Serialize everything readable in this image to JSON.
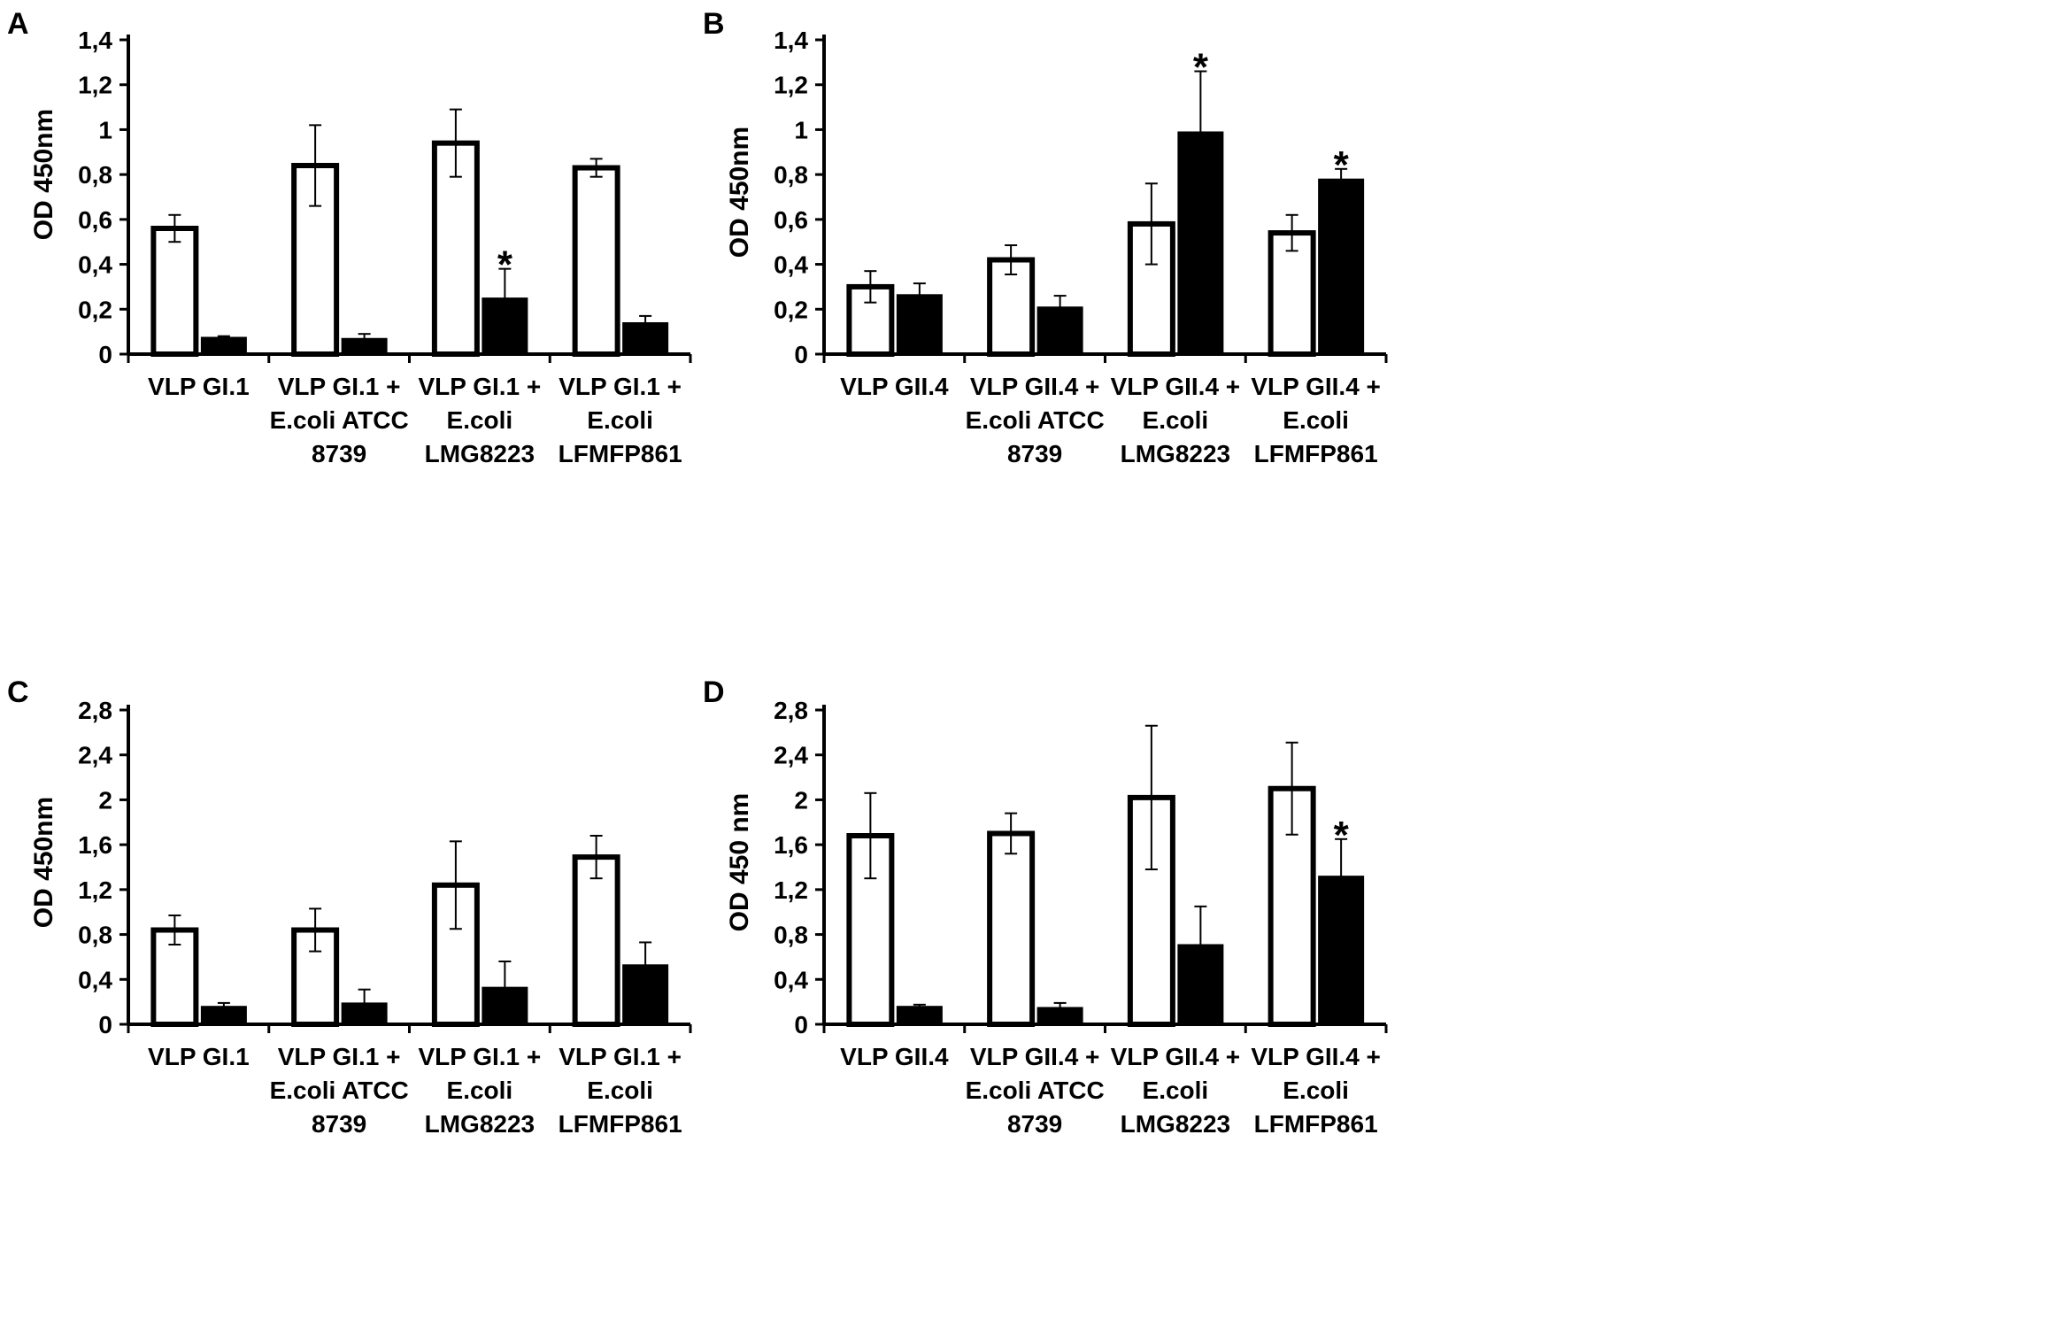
{
  "chart_data": [
    {
      "panel": "A",
      "type": "bar",
      "ylabel": "OD 450nm",
      "ylim": [
        0,
        1.4
      ],
      "yticks": [
        "0",
        "0,2",
        "0,4",
        "0,6",
        "0,8",
        "1",
        "1,2",
        "1,4"
      ],
      "categories": [
        [
          "VLP GI.1"
        ],
        [
          "VLP GI.1 +",
          "E.coli ATCC",
          "8739"
        ],
        [
          "VLP GI.1 +",
          "E.coli",
          "LMG8223"
        ],
        [
          "VLP GI.1 +",
          "E.coli",
          "LFMFP861"
        ]
      ],
      "series": [
        {
          "name": "white",
          "values": [
            0.56,
            0.84,
            0.94,
            0.83
          ],
          "errors": [
            0.06,
            0.18,
            0.15,
            0.04
          ]
        },
        {
          "name": "black",
          "values": [
            0.075,
            0.07,
            0.25,
            0.14
          ],
          "errors": [
            0.005,
            0.02,
            0.13,
            0.03
          ]
        }
      ],
      "significance": [
        {
          "series": 1,
          "index": 2,
          "label": "*"
        }
      ]
    },
    {
      "panel": "B",
      "type": "bar",
      "ylabel": "OD 450nm",
      "ylim": [
        0,
        1.4
      ],
      "yticks": [
        "0",
        "0,2",
        "0,4",
        "0,6",
        "0,8",
        "1",
        "1,2",
        "1,4"
      ],
      "categories": [
        [
          "VLP GII.4"
        ],
        [
          "VLP GII.4 +",
          "E.coli ATCC",
          "8739"
        ],
        [
          "VLP GII.4 +",
          "E.coli",
          "LMG8223"
        ],
        [
          "VLP GII.4 +",
          "E.coli",
          "LFMFP861"
        ]
      ],
      "series": [
        {
          "name": "white",
          "values": [
            0.3,
            0.42,
            0.58,
            0.54
          ],
          "errors": [
            0.07,
            0.065,
            0.18,
            0.08
          ]
        },
        {
          "name": "black",
          "values": [
            0.265,
            0.21,
            0.99,
            0.78
          ],
          "errors": [
            0.05,
            0.05,
            0.27,
            0.045
          ]
        }
      ],
      "significance": [
        {
          "series": 1,
          "index": 2,
          "label": "*"
        },
        {
          "series": 1,
          "index": 3,
          "label": "*"
        }
      ]
    },
    {
      "panel": "C",
      "type": "bar",
      "ylabel": "OD 450nm",
      "ylim": [
        0,
        2.8
      ],
      "yticks": [
        "0",
        "0,4",
        "0,8",
        "1,2",
        "1,6",
        "2",
        "2,4",
        "2,8"
      ],
      "categories": [
        [
          "VLP GI.1"
        ],
        [
          "VLP GI.1 +",
          "E.coli ATCC",
          "8739"
        ],
        [
          "VLP GI.1 +",
          "E.coli",
          "LMG8223"
        ],
        [
          "VLP GI.1 +",
          "E.coli",
          "LFMFP861"
        ]
      ],
      "series": [
        {
          "name": "white",
          "values": [
            0.84,
            0.84,
            1.24,
            1.49
          ],
          "errors": [
            0.13,
            0.19,
            0.39,
            0.19
          ]
        },
        {
          "name": "black",
          "values": [
            0.16,
            0.19,
            0.33,
            0.53
          ],
          "errors": [
            0.03,
            0.12,
            0.23,
            0.2
          ]
        }
      ],
      "significance": []
    },
    {
      "panel": "D",
      "type": "bar",
      "ylabel": "OD 450 nm",
      "ylim": [
        0,
        2.8
      ],
      "yticks": [
        "0",
        "0,4",
        "0,8",
        "1,2",
        "1,6",
        "2",
        "2,4",
        "2,8"
      ],
      "categories": [
        [
          "VLP GII.4"
        ],
        [
          "VLP GII.4 +",
          "E.coli ATCC",
          "8739"
        ],
        [
          "VLP GII.4 +",
          "E.coli",
          "LMG8223"
        ],
        [
          "VLP GII.4 +",
          "E.coli",
          "LFMFP861"
        ]
      ],
      "series": [
        {
          "name": "white",
          "values": [
            1.68,
            1.7,
            2.02,
            2.1
          ],
          "errors": [
            0.38,
            0.18,
            0.64,
            0.41
          ]
        },
        {
          "name": "black",
          "values": [
            0.16,
            0.15,
            0.71,
            1.32
          ],
          "errors": [
            0.015,
            0.04,
            0.34,
            0.33
          ]
        }
      ],
      "significance": [
        {
          "series": 1,
          "index": 3,
          "label": "*"
        }
      ]
    }
  ]
}
